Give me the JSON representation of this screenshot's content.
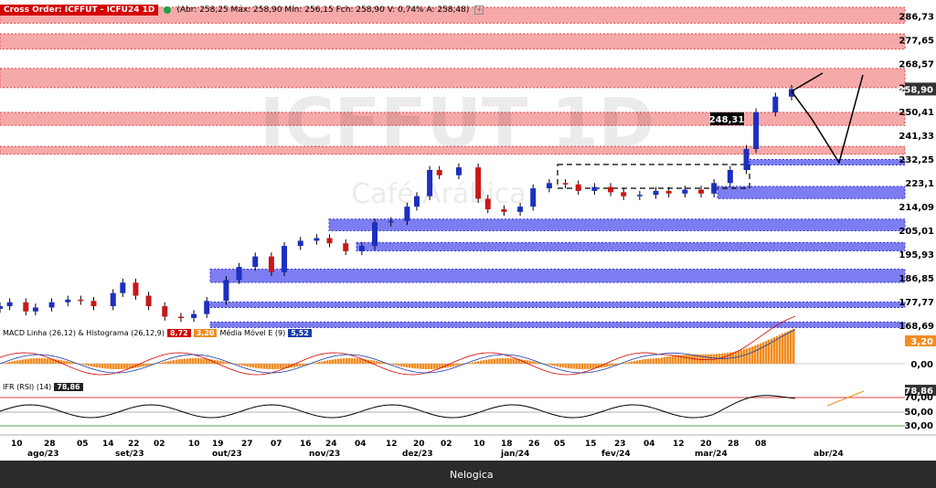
{
  "header": {
    "title": "Cross Order: ICFFUT - ICFU24 1D",
    "quote": "(Abr: 258,25  Máx: 258,90  Mín: 256,15  Fch: 258,90  V: 0,74%  A: 258,48)",
    "plus": "+"
  },
  "watermark": {
    "main": "ICFFUT 1D",
    "sub": "Café Arábica"
  },
  "price_axis": [
    "286,73",
    "277,65",
    "268,57",
    "259,49",
    "250,41",
    "241,33",
    "232,25",
    "223,1",
    "214,09",
    "205,01",
    "195,93",
    "186,85",
    "177,77",
    "168,69"
  ],
  "last_price": "258,90",
  "callout": "248,31",
  "zone_labels": {
    "red": [
      "290,10",
      "287,03",
      "284,06",
      "279,98",
      "277,05",
      "274,12",
      "266,76",
      "263,12",
      "259,46"
    ],
    "blue": [
      "232,00",
      "230,90",
      "221,70",
      "220,02",
      "217,05",
      "209,25",
      "207,62",
      "204,81",
      "200,30",
      "198,11",
      "197,13",
      "190,15",
      "187,80",
      "185,05",
      "177,60",
      "175,81",
      "169,95",
      "168,91"
    ]
  },
  "macd": {
    "label": "MACD Linha (26,12) & Histograma (26,12,9)",
    "line_value": "8,72",
    "hist_value": "3,20",
    "ma_label": "Média Móvel E (9)",
    "ma_value": "5,52",
    "axis": [
      "3,20",
      "0,00"
    ],
    "colors": {
      "line": "#d40000",
      "hist": "#f0a000",
      "ma": "#1a3aa8",
      "bars": "#f28c1f"
    }
  },
  "rsi": {
    "label": "IFR (RSI) (14)",
    "value": "78,86",
    "axis": [
      "78,86",
      "70,00",
      "50,00",
      "30,00"
    ]
  },
  "time_axis": {
    "days": [
      "10",
      "28",
      "05",
      "14",
      "22",
      "02",
      "10",
      "19",
      "27",
      "07",
      "16",
      "24",
      "04",
      "12",
      "20",
      "02",
      "10",
      "18",
      "26",
      "05",
      "15",
      "23",
      "04",
      "12",
      "20",
      "28",
      "08"
    ],
    "months": [
      "ago/23",
      "set/23",
      "out/23",
      "nov/23",
      "dez/23",
      "jan/24",
      "fev/24",
      "mar/24",
      "abr/24"
    ]
  },
  "footer": {
    "brand": "Nelogica"
  },
  "chart_data": {
    "type": "candlestick",
    "title": "ICFFUT 1D",
    "subtitle": "Café Arábica",
    "ylim": [
      168.69,
      290.1
    ],
    "x_start": "2023-08-07",
    "last_close": 258.9,
    "series": [
      {
        "x": "2023-08-07",
        "close": 176.0
      },
      {
        "x": "2023-08-10",
        "close": 177.5
      },
      {
        "x": "2023-08-15",
        "close": 174.0
      },
      {
        "x": "2023-08-18",
        "close": 175.5
      },
      {
        "x": "2023-08-23",
        "close": 177.5
      },
      {
        "x": "2023-08-28",
        "close": 178.5
      },
      {
        "x": "2023-09-01",
        "close": 178.0
      },
      {
        "x": "2023-09-05",
        "close": 176.0
      },
      {
        "x": "2023-09-11",
        "close": 181.0
      },
      {
        "x": "2023-09-14",
        "close": 185.0
      },
      {
        "x": "2023-09-18",
        "close": 180.0
      },
      {
        "x": "2023-09-22",
        "close": 176.0
      },
      {
        "x": "2023-09-27",
        "close": 172.0
      },
      {
        "x": "2023-10-02",
        "close": 171.5
      },
      {
        "x": "2023-10-06",
        "close": 173.0
      },
      {
        "x": "2023-10-10",
        "close": 178.0
      },
      {
        "x": "2023-10-16",
        "close": 186.0
      },
      {
        "x": "2023-10-20",
        "close": 191.0
      },
      {
        "x": "2023-10-25",
        "close": 195.0
      },
      {
        "x": "2023-10-30",
        "close": 189.0
      },
      {
        "x": "2023-11-03",
        "close": 199.0
      },
      {
        "x": "2023-11-08",
        "close": 201.0
      },
      {
        "x": "2023-11-13",
        "close": 202.0
      },
      {
        "x": "2023-11-17",
        "close": 200.0
      },
      {
        "x": "2023-11-22",
        "close": 197.0
      },
      {
        "x": "2023-11-27",
        "close": 199.0
      },
      {
        "x": "2023-12-01",
        "close": 208.0
      },
      {
        "x": "2023-12-06",
        "close": 208.5
      },
      {
        "x": "2023-12-11",
        "close": 214.0
      },
      {
        "x": "2023-12-14",
        "close": 218.0
      },
      {
        "x": "2023-12-18",
        "close": 228.0
      },
      {
        "x": "2023-12-21",
        "close": 226.0
      },
      {
        "x": "2023-12-27",
        "close": 229.0
      },
      {
        "x": "2024-01-02",
        "close": 217.0
      },
      {
        "x": "2024-01-05",
        "close": 213.0
      },
      {
        "x": "2024-01-10",
        "close": 212.0
      },
      {
        "x": "2024-01-15",
        "close": 214.0
      },
      {
        "x": "2024-01-19",
        "close": 221.0
      },
      {
        "x": "2024-01-24",
        "close": 223.0
      },
      {
        "x": "2024-01-29",
        "close": 222.5
      },
      {
        "x": "2024-02-02",
        "close": 220.0
      },
      {
        "x": "2024-02-07",
        "close": 221.5
      },
      {
        "x": "2024-02-12",
        "close": 219.5
      },
      {
        "x": "2024-02-16",
        "close": 218.0
      },
      {
        "x": "2024-02-21",
        "close": 218.5
      },
      {
        "x": "2024-02-26",
        "close": 220.0
      },
      {
        "x": "2024-03-01",
        "close": 219.0
      },
      {
        "x": "2024-03-06",
        "close": 220.5
      },
      {
        "x": "2024-03-11",
        "close": 219.0
      },
      {
        "x": "2024-03-15",
        "close": 223.0
      },
      {
        "x": "2024-03-20",
        "close": 228.0
      },
      {
        "x": "2024-03-25",
        "close": 236.0
      },
      {
        "x": "2024-03-28",
        "close": 250.0
      },
      {
        "x": "2024-04-03",
        "close": 256.0
      },
      {
        "x": "2024-04-08",
        "close": 258.9
      }
    ],
    "red_zones": [
      [
        284.06,
        290.1
      ],
      [
        274.12,
        279.98
      ],
      [
        259.46,
        266.76
      ],
      [
        245.0,
        250.0
      ],
      [
        234.0,
        237.0
      ]
    ],
    "blue_zones": [
      [
        230.9,
        232.0
      ],
      [
        217.05,
        221.7
      ],
      [
        204.81,
        209.25
      ],
      [
        197.13,
        200.3
      ],
      [
        185.05,
        190.15
      ],
      [
        175.81,
        177.6
      ],
      [
        168.91,
        169.95
      ]
    ],
    "rsi_levels": [
      70,
      50,
      30
    ]
  }
}
